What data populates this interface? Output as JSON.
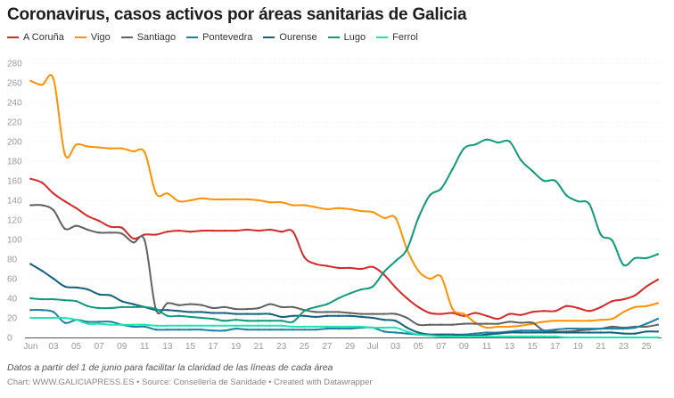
{
  "title": "Coronavirus, casos activos por áreas sanitarias de Galicia",
  "note": "Datos a partir del 1 de junio para facilitar la claridad de las líneas de cada área",
  "credit": "Chart: WWW.GALICIAPRESS.ES • Source: Consellería de Sanidade • Created with Datawrapper",
  "chart_data": {
    "type": "line",
    "title": "Coronavirus, casos activos por áreas sanitarias de Galicia",
    "x_start": "2020-06-01",
    "x_end": "2020-07-26",
    "x_tick_labels": [
      "Jun",
      "03",
      "05",
      "07",
      "09",
      "11",
      "13",
      "15",
      "17",
      "19",
      "21",
      "23",
      "25",
      "27",
      "29",
      "Jul",
      "03",
      "05",
      "07",
      "09",
      "11",
      "13",
      "15",
      "17",
      "19",
      "21",
      "23",
      "25"
    ],
    "y_ticks": [
      0,
      20,
      40,
      60,
      80,
      100,
      120,
      140,
      160,
      180,
      200,
      220,
      240,
      260,
      280
    ],
    "ylim": [
      0,
      280
    ],
    "legend_position": "top-left",
    "series": [
      {
        "name": "A Coruña",
        "color": "#d52a2a",
        "values": [
          162,
          158,
          147,
          139,
          132,
          124,
          119,
          113,
          112,
          101,
          105,
          105,
          108,
          109,
          108,
          109,
          109,
          109,
          109,
          110,
          109,
          110,
          108,
          108,
          82,
          75,
          73,
          71,
          71,
          70,
          72,
          64,
          51,
          40,
          31,
          25,
          24,
          25,
          22,
          25,
          22,
          19,
          24,
          23,
          26,
          27,
          27,
          32,
          30,
          27,
          31,
          37,
          39,
          43,
          52,
          59
        ]
      },
      {
        "name": "Vigo",
        "color": "#ff9200",
        "values": [
          262,
          258,
          264,
          187,
          197,
          195,
          194,
          193,
          193,
          190,
          189,
          147,
          147,
          139,
          140,
          142,
          141,
          141,
          141,
          141,
          140,
          138,
          138,
          135,
          135,
          133,
          131,
          132,
          131,
          129,
          128,
          122,
          122,
          90,
          68,
          60,
          62,
          29,
          24,
          15,
          10,
          11,
          11,
          12,
          14,
          16,
          17,
          17,
          17,
          17,
          18,
          19,
          26,
          31,
          32,
          35
        ]
      },
      {
        "name": "Santiago",
        "color": "#626262",
        "values": [
          135,
          135,
          130,
          111,
          114,
          110,
          107,
          107,
          106,
          97,
          99,
          28,
          35,
          33,
          34,
          33,
          30,
          31,
          29,
          29,
          30,
          34,
          31,
          31,
          28,
          26,
          26,
          26,
          25,
          24,
          24,
          24,
          24,
          20,
          13,
          13,
          13,
          13,
          14,
          14,
          14,
          14,
          16,
          15,
          15,
          7,
          6,
          6,
          7,
          8,
          9,
          11,
          10,
          11,
          11,
          13
        ]
      },
      {
        "name": "Pontevedra",
        "color": "#1d81a2",
        "values": [
          28,
          28,
          26,
          15,
          18,
          16,
          16,
          16,
          13,
          11,
          11,
          8,
          8,
          8,
          8,
          8,
          7,
          7,
          9,
          8,
          8,
          8,
          8,
          8,
          8,
          8,
          9,
          9,
          9,
          10,
          10,
          6,
          5,
          4,
          3,
          3,
          3,
          3,
          3,
          4,
          5,
          5,
          6,
          7,
          7,
          7,
          8,
          9,
          9,
          9,
          9,
          9,
          9,
          10,
          14,
          19
        ]
      },
      {
        "name": "Ourense",
        "color": "#15607a",
        "values": [
          75,
          68,
          60,
          52,
          51,
          49,
          44,
          43,
          37,
          34,
          31,
          28,
          28,
          27,
          26,
          26,
          25,
          25,
          24,
          24,
          24,
          24,
          21,
          22,
          22,
          21,
          22,
          22,
          22,
          21,
          20,
          18,
          17,
          10,
          5,
          3,
          3,
          3,
          2,
          2,
          3,
          4,
          5,
          5,
          5,
          5,
          5,
          5,
          5,
          5,
          5,
          5,
          4,
          4,
          6,
          6
        ]
      },
      {
        "name": "Lugo",
        "color": "#0f9a7a",
        "values": [
          40,
          39,
          39,
          38,
          37,
          32,
          30,
          30,
          31,
          31,
          31,
          29,
          22,
          22,
          21,
          20,
          19,
          17,
          18,
          17,
          17,
          17,
          17,
          16,
          27,
          31,
          34,
          40,
          45,
          49,
          52,
          67,
          78,
          90,
          122,
          145,
          152,
          172,
          193,
          197,
          202,
          199,
          200,
          181,
          170,
          160,
          160,
          145,
          139,
          136,
          105,
          99,
          74,
          81,
          81,
          85
        ]
      },
      {
        "name": "Ferrol",
        "color": "#1de5b0",
        "values": [
          20,
          20,
          20,
          20,
          18,
          14,
          14,
          13,
          13,
          13,
          13,
          12,
          12,
          12,
          12,
          12,
          12,
          12,
          12,
          12,
          12,
          12,
          12,
          11,
          11,
          11,
          11,
          11,
          11,
          11,
          10,
          10,
          10,
          6,
          3,
          2,
          1,
          1,
          1,
          1,
          1,
          1,
          1,
          1,
          1,
          1,
          1,
          0,
          0,
          0,
          0,
          0,
          0,
          0,
          0,
          0
        ]
      }
    ]
  }
}
